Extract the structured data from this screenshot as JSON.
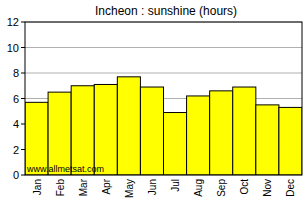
{
  "chart_data": {
    "type": "bar",
    "title": "Incheon : sunshine (hours)",
    "categories": [
      "Jan",
      "Feb",
      "Mar",
      "Apr",
      "May",
      "Jun",
      "Jul",
      "Aug",
      "Sep",
      "Oct",
      "Nov",
      "Dec"
    ],
    "values": [
      5.7,
      6.5,
      7.0,
      7.1,
      7.7,
      6.9,
      4.9,
      6.2,
      6.6,
      6.9,
      5.5,
      5.3
    ],
    "color": "#ffff00",
    "ylim": [
      0,
      12
    ],
    "yticks": [
      0,
      2,
      4,
      6,
      8,
      10,
      12
    ],
    "grid": true,
    "annotations": [
      "www.allmetsat.com"
    ]
  }
}
